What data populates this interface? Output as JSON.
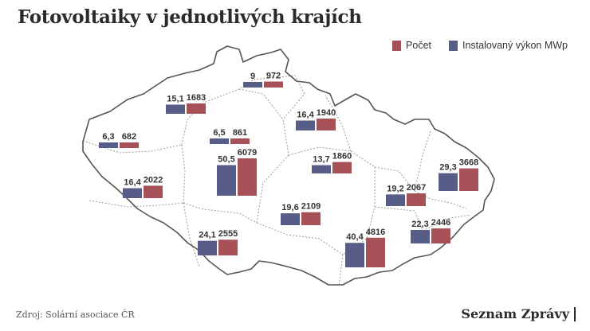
{
  "title": "Fotovoltaiky v jednotlivých krajích",
  "legend": {
    "count_label": "Počet",
    "power_label": "Instalovaný výkon MWp"
  },
  "colors": {
    "count": "#a55157",
    "power": "#585d87",
    "border": "#555555",
    "internal_border": "#9a9a9a"
  },
  "regions": [
    {
      "power": "9",
      "count": "972",
      "power_value": 9,
      "count_value": 972
    },
    {
      "power": "15,1",
      "count": "1683",
      "power_value": 15.1,
      "count_value": 1683
    },
    {
      "power": "16,4",
      "count": "1940",
      "power_value": 16.4,
      "count_value": 1940
    },
    {
      "power": "6,3",
      "count": "682",
      "power_value": 6.3,
      "count_value": 682
    },
    {
      "power": "6,5",
      "count": "861",
      "power_value": 6.5,
      "count_value": 861
    },
    {
      "power": "50,5",
      "count": "6079",
      "power_value": 50.5,
      "count_value": 6079
    },
    {
      "power": "13,7",
      "count": "1860",
      "power_value": 13.7,
      "count_value": 1860
    },
    {
      "power": "29,3",
      "count": "3668",
      "power_value": 29.3,
      "count_value": 3668
    },
    {
      "power": "16,4",
      "count": "2022",
      "power_value": 16.4,
      "count_value": 2022
    },
    {
      "power": "19,2",
      "count": "2067",
      "power_value": 19.2,
      "count_value": 2067
    },
    {
      "power": "19,6",
      "count": "2109",
      "power_value": 19.6,
      "count_value": 2109
    },
    {
      "power": "24,1",
      "count": "2555",
      "power_value": 24.1,
      "count_value": 2555
    },
    {
      "power": "22,3",
      "count": "2446",
      "power_value": 22.3,
      "count_value": 2446
    },
    {
      "power": "40,4",
      "count": "4816",
      "power_value": 40.4,
      "count_value": 4816
    }
  ],
  "source": "Zdroj: Solární asociace ČR",
  "brand": "Seznam Zprávy"
}
